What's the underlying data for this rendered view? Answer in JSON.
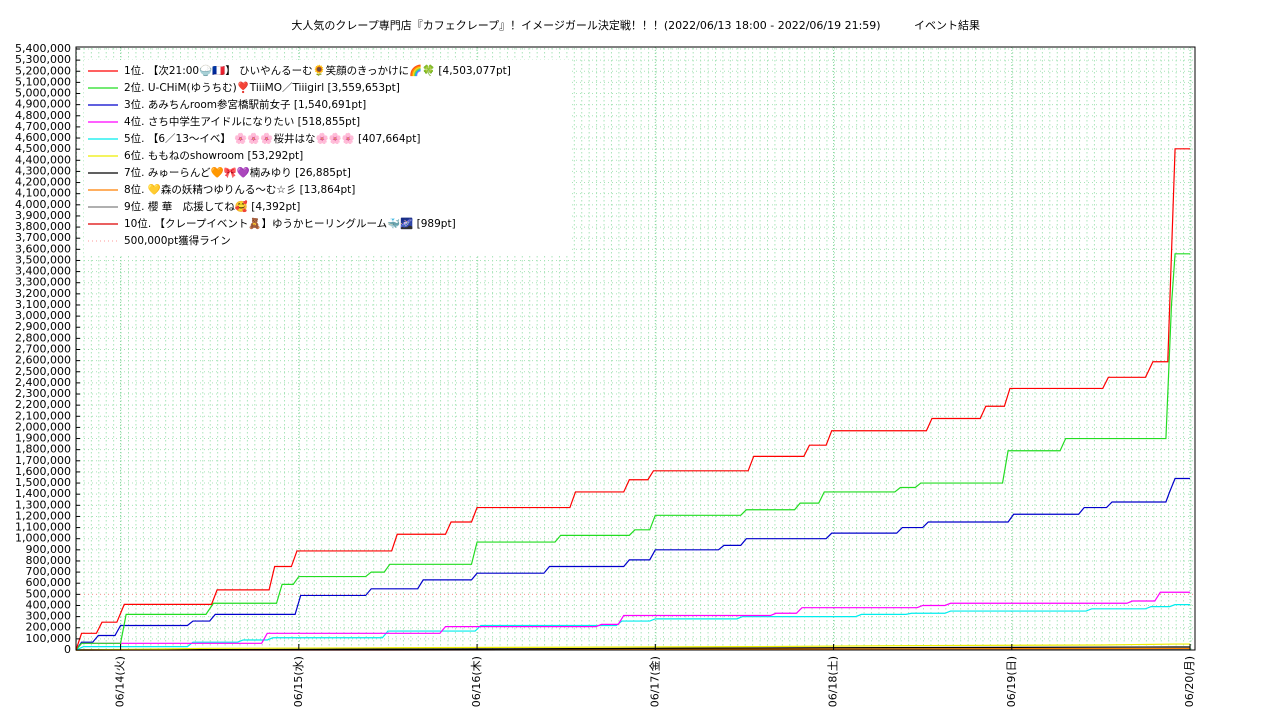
{
  "chart_data": {
    "type": "line",
    "title": "大人気のクレープ専門店『カフェクレープ』！イメージガール決定戦！！！(2022/06/13 18:00 - 2022/06/19 21:59)",
    "subtitle": "イベント結果",
    "xlim": [
      "2022-06-13 18:00",
      "2022-06-20 00:40"
    ],
    "xticks": [
      {
        "value": "2022-06-14 00:00",
        "label": "06/14(火)"
      },
      {
        "value": "2022-06-15 00:00",
        "label": "06/15(水)"
      },
      {
        "value": "2022-06-16 00:00",
        "label": "06/16(木)"
      },
      {
        "value": "2022-06-17 00:00",
        "label": "06/17(金)"
      },
      {
        "value": "2022-06-18 00:00",
        "label": "06/18(土)"
      },
      {
        "value": "2022-06-19 00:00",
        "label": "06/19(日)"
      },
      {
        "value": "2022-06-20 00:00",
        "label": "06/20(月)"
      }
    ],
    "ylim": [
      0,
      5400000
    ],
    "yticks": [
      0,
      {
        "value": 100000,
        "label": "100,000"
      },
      {
        "value": 200000,
        "label": "200,000"
      },
      {
        "value": 300000,
        "label": "300,000"
      },
      {
        "value": 400000,
        "label": "400,000"
      },
      {
        "value": 500000,
        "label": "500,000"
      },
      {
        "value": 600000,
        "label": "600,000"
      },
      {
        "value": 700000,
        "label": "700,000"
      },
      {
        "value": 800000,
        "label": "800,000"
      },
      {
        "value": 900000,
        "label": "900,000"
      },
      {
        "value": 1000000,
        "label": "1,000,000"
      },
      {
        "value": 1100000,
        "label": "1,100,000"
      },
      {
        "value": 1200000,
        "label": "1,200,000"
      },
      {
        "value": 1300000,
        "label": "1,300,000"
      },
      {
        "value": 1400000,
        "label": "1,400,000"
      },
      {
        "value": 1500000,
        "label": "1,500,000"
      },
      {
        "value": 1600000,
        "label": "1,600,000"
      },
      {
        "value": 1700000,
        "label": "1,700,000"
      },
      {
        "value": 1800000,
        "label": "1,800,000"
      },
      {
        "value": 1900000,
        "label": "1,900,000"
      },
      {
        "value": 2000000,
        "label": "2,000,000"
      },
      {
        "value": 2100000,
        "label": "2,100,000"
      },
      {
        "value": 2200000,
        "label": "2,200,000"
      },
      {
        "value": 2300000,
        "label": "2,300,000"
      },
      {
        "value": 2400000,
        "label": "2,400,000"
      },
      {
        "value": 2500000,
        "label": "2,500,000"
      },
      {
        "value": 2600000,
        "label": "2,600,000"
      },
      {
        "value": 2700000,
        "label": "2,700,000"
      },
      {
        "value": 2800000,
        "label": "2,800,000"
      },
      {
        "value": 2900000,
        "label": "2,900,000"
      },
      {
        "value": 3000000,
        "label": "3,000,000"
      },
      {
        "value": 3100000,
        "label": "3,100,000"
      },
      {
        "value": 3200000,
        "label": "3,200,000"
      },
      {
        "value": 3300000,
        "label": "3,300,000"
      },
      {
        "value": 3400000,
        "label": "3,400,000"
      },
      {
        "value": 3500000,
        "label": "3,500,000"
      },
      {
        "value": 3600000,
        "label": "3,600,000"
      },
      {
        "value": 3700000,
        "label": "3,700,000"
      },
      {
        "value": 3800000,
        "label": "3,800,000"
      },
      {
        "value": 3900000,
        "label": "3,900,000"
      },
      {
        "value": 4000000,
        "label": "4,000,000"
      },
      {
        "value": 4100000,
        "label": "4,100,000"
      },
      {
        "value": 4200000,
        "label": "4,200,000"
      },
      {
        "value": 4300000,
        "label": "4,300,000"
      },
      {
        "value": 4400000,
        "label": "4,400,000"
      },
      {
        "value": 4500000,
        "label": "4,500,000"
      },
      {
        "value": 4600000,
        "label": "4,600,000"
      },
      {
        "value": 4700000,
        "label": "4,700,000"
      },
      {
        "value": 4800000,
        "label": "4,800,000"
      },
      {
        "value": 4900000,
        "label": "4,900,000"
      },
      {
        "value": 5000000,
        "label": "5,000,000"
      },
      {
        "value": 5100000,
        "label": "5,100,000"
      },
      {
        "value": 5200000,
        "label": "5,200,000"
      },
      {
        "value": 5300000,
        "label": "5,300,000"
      },
      {
        "value": 5400000,
        "label": "5,400,000"
      }
    ],
    "grid": true,
    "legend": "upper left",
    "series": [
      {
        "name": "1位. 【次21:00🍚🇫🇷】 ひいやんるーむ🌻笑顔のきっかけに🌈🍀 [4,503,077pt]",
        "color": "#ff0000",
        "x": [
          "2022-06-13 18:00",
          "2022-06-13 18:45",
          "2022-06-13 20:45",
          "2022-06-13 21:30",
          "2022-06-13 23:30",
          "2022-06-14 00:30",
          "2022-06-14 12:15",
          "2022-06-14 13:00",
          "2022-06-14 20:00",
          "2022-06-14 20:45",
          "2022-06-14 23:00",
          "2022-06-14 23:45",
          "2022-06-15 12:30",
          "2022-06-15 13:15",
          "2022-06-15 19:45",
          "2022-06-15 20:30",
          "2022-06-15 23:15",
          "2022-06-16 00:00",
          "2022-06-16 12:30",
          "2022-06-16 13:15",
          "2022-06-16 19:45",
          "2022-06-16 20:30",
          "2022-06-16 23:00",
          "2022-06-16 23:45",
          "2022-06-17 12:30",
          "2022-06-17 13:15",
          "2022-06-17 20:00",
          "2022-06-17 20:45",
          "2022-06-17 23:00",
          "2022-06-17 23:45",
          "2022-06-18 12:30",
          "2022-06-18 13:15",
          "2022-06-18 19:45",
          "2022-06-18 20:30",
          "2022-06-18 23:00",
          "2022-06-18 23:45",
          "2022-06-19 12:15",
          "2022-06-19 13:00",
          "2022-06-19 18:00",
          "2022-06-19 19:00",
          "2022-06-19 21:00",
          "2022-06-19 21:59",
          "2022-06-20 00:00"
        ],
        "values": [
          0,
          150000,
          150000,
          250000,
          250000,
          410000,
          410000,
          540000,
          540000,
          750000,
          750000,
          890000,
          890000,
          1040000,
          1040000,
          1150000,
          1150000,
          1280000,
          1280000,
          1420000,
          1420000,
          1530000,
          1530000,
          1610000,
          1610000,
          1740000,
          1740000,
          1840000,
          1840000,
          1970000,
          1970000,
          2080000,
          2080000,
          2190000,
          2190000,
          2350000,
          2350000,
          2450000,
          2450000,
          2590000,
          2590000,
          4503077,
          4503077
        ]
      },
      {
        "name": "2位. U-CHiM(ゆうちむ)❣️TiiiMO／Tiiigirl [3,559,653pt]",
        "color": "#22dd22",
        "x": [
          "2022-06-13 18:00",
          "2022-06-13 18:45",
          "2022-06-14 00:00",
          "2022-06-14 00:45",
          "2022-06-14 11:30",
          "2022-06-14 12:30",
          "2022-06-14 21:00",
          "2022-06-14 21:45",
          "2022-06-14 23:15",
          "2022-06-15 00:00",
          "2022-06-15 09:00",
          "2022-06-15 09:45",
          "2022-06-15 11:30",
          "2022-06-15 12:15",
          "2022-06-15 23:15",
          "2022-06-16 00:00",
          "2022-06-16 10:30",
          "2022-06-16 11:15",
          "2022-06-16 20:30",
          "2022-06-16 21:15",
          "2022-06-16 23:15",
          "2022-06-17 00:00",
          "2022-06-17 11:30",
          "2022-06-17 12:15",
          "2022-06-17 18:45",
          "2022-06-17 19:30",
          "2022-06-17 22:00",
          "2022-06-17 22:45",
          "2022-06-18 08:15",
          "2022-06-18 09:00",
          "2022-06-18 11:00",
          "2022-06-18 11:45",
          "2022-06-18 22:45",
          "2022-06-18 23:30",
          "2022-06-19 06:30",
          "2022-06-19 07:15",
          "2022-06-19 20:45",
          "2022-06-19 21:30",
          "2022-06-19 21:59",
          "2022-06-20 00:00"
        ],
        "values": [
          0,
          60000,
          60000,
          320000,
          320000,
          420000,
          420000,
          590000,
          590000,
          660000,
          660000,
          700000,
          700000,
          770000,
          770000,
          970000,
          970000,
          1030000,
          1030000,
          1080000,
          1080000,
          1210000,
          1210000,
          1260000,
          1260000,
          1320000,
          1320000,
          1420000,
          1420000,
          1460000,
          1460000,
          1500000,
          1500000,
          1790000,
          1790000,
          1900000,
          1900000,
          3100000,
          3559653,
          3559653
        ]
      },
      {
        "name": "3位. あみちんroom参宮橋駅前女子 [1,540,691pt]",
        "color": "#0000cc",
        "x": [
          "2022-06-13 18:00",
          "2022-06-13 18:45",
          "2022-06-13 20:15",
          "2022-06-13 21:00",
          "2022-06-13 23:15",
          "2022-06-14 00:00",
          "2022-06-14 09:00",
          "2022-06-14 09:45",
          "2022-06-14 12:00",
          "2022-06-14 12:45",
          "2022-06-14 23:30",
          "2022-06-15 00:15",
          "2022-06-15 09:00",
          "2022-06-15 09:45",
          "2022-06-15 16:00",
          "2022-06-15 16:45",
          "2022-06-15 23:15",
          "2022-06-16 00:00",
          "2022-06-16 09:00",
          "2022-06-16 09:45",
          "2022-06-16 19:45",
          "2022-06-16 20:30",
          "2022-06-16 23:15",
          "2022-06-17 00:00",
          "2022-06-17 08:30",
          "2022-06-17 09:15",
          "2022-06-17 11:30",
          "2022-06-17 12:15",
          "2022-06-17 23:00",
          "2022-06-17 23:45",
          "2022-06-18 08:30",
          "2022-06-18 09:15",
          "2022-06-18 12:00",
          "2022-06-18 12:45",
          "2022-06-18 23:30",
          "2022-06-19 00:15",
          "2022-06-19 09:00",
          "2022-06-19 09:45",
          "2022-06-19 12:45",
          "2022-06-19 13:30",
          "2022-06-19 20:45",
          "2022-06-19 21:15",
          "2022-06-19 21:59",
          "2022-06-20 00:00"
        ],
        "values": [
          0,
          70000,
          70000,
          130000,
          130000,
          220000,
          220000,
          260000,
          260000,
          320000,
          320000,
          490000,
          490000,
          550000,
          550000,
          630000,
          630000,
          690000,
          690000,
          750000,
          750000,
          810000,
          810000,
          900000,
          900000,
          940000,
          940000,
          1000000,
          1000000,
          1050000,
          1050000,
          1100000,
          1100000,
          1150000,
          1150000,
          1220000,
          1220000,
          1280000,
          1280000,
          1330000,
          1330000,
          1420000,
          1540691,
          1540691
        ]
      },
      {
        "name": "4位. さち中学生アイドルになりたい [518,855pt]",
        "color": "#ff00ff",
        "x": [
          "2022-06-13 18:00",
          "2022-06-13 18:45",
          "2022-06-14 19:00",
          "2022-06-14 19:45",
          "2022-06-15 19:00",
          "2022-06-15 19:45",
          "2022-06-16 16:00",
          "2022-06-16 16:45",
          "2022-06-16 19:00",
          "2022-06-16 19:45",
          "2022-06-17 15:30",
          "2022-06-17 16:15",
          "2022-06-17 19:00",
          "2022-06-17 19:45",
          "2022-06-18 11:15",
          "2022-06-18 12:00",
          "2022-06-18 15:00",
          "2022-06-18 15:45",
          "2022-06-19 15:30",
          "2022-06-19 16:15",
          "2022-06-19 19:15",
          "2022-06-19 20:00",
          "2022-06-20 00:00"
        ],
        "values": [
          0,
          60000,
          60000,
          150000,
          150000,
          210000,
          210000,
          230000,
          230000,
          310000,
          310000,
          330000,
          330000,
          380000,
          380000,
          400000,
          400000,
          420000,
          420000,
          440000,
          440000,
          518855,
          518855
        ]
      },
      {
        "name": "5位. 【6／13〜イベ】 🌸🌸🌸桜井はな🌸🌸🌸 [407,664pt]",
        "color": "#00eeee",
        "x": [
          "2022-06-13 18:00",
          "2022-06-13 19:00",
          "2022-06-14 09:00",
          "2022-06-14 09:45",
          "2022-06-14 15:45",
          "2022-06-14 16:30",
          "2022-06-14 19:45",
          "2022-06-14 20:30",
          "2022-06-15 11:15",
          "2022-06-15 12:00",
          "2022-06-15 23:45",
          "2022-06-16 00:30",
          "2022-06-16 18:45",
          "2022-06-16 19:30",
          "2022-06-16 23:15",
          "2022-06-17 00:00",
          "2022-06-17 11:00",
          "2022-06-17 11:45",
          "2022-06-18 03:00",
          "2022-06-18 03:45",
          "2022-06-18 09:45",
          "2022-06-18 10:30",
          "2022-06-18 15:00",
          "2022-06-18 15:45",
          "2022-06-19 10:00",
          "2022-06-19 10:45",
          "2022-06-19 18:00",
          "2022-06-19 18:45",
          "2022-06-19 21:15",
          "2022-06-19 21:59",
          "2022-06-20 00:00"
        ],
        "values": [
          0,
          30000,
          30000,
          70000,
          70000,
          90000,
          90000,
          110000,
          110000,
          170000,
          170000,
          220000,
          220000,
          260000,
          260000,
          280000,
          280000,
          300000,
          300000,
          320000,
          320000,
          330000,
          330000,
          350000,
          350000,
          370000,
          370000,
          390000,
          390000,
          407664,
          407664
        ]
      },
      {
        "name": "6位. ももねのshowroom [53,292pt]",
        "color": "#eeee00",
        "x": [
          "2022-06-13 18:00",
          "2022-06-14 12:00",
          "2022-06-15 12:00",
          "2022-06-16 12:00",
          "2022-06-17 12:00",
          "2022-06-18 12:00",
          "2022-06-19 12:00",
          "2022-06-19 21:59",
          "2022-06-20 00:00"
        ],
        "values": [
          0,
          15000,
          20000,
          25000,
          30000,
          40000,
          45000,
          53292,
          53292
        ]
      },
      {
        "name": "7位. みゅーらんど🧡🎀💜楠みゆり [26,885pt]",
        "color": "#000000",
        "x": [
          "2022-06-13 18:00",
          "2022-06-16 00:00",
          "2022-06-18 00:00",
          "2022-06-19 21:59",
          "2022-06-20 00:00"
        ],
        "values": [
          0,
          10000,
          20000,
          26885,
          26885
        ]
      },
      {
        "name": "8位. 💛森の妖精つゆりんる〜む☆彡 [13,864pt]",
        "color": "#ff7f00",
        "x": [
          "2022-06-13 18:00",
          "2022-06-17 00:00",
          "2022-06-19 21:59",
          "2022-06-20 00:00"
        ],
        "values": [
          0,
          8000,
          13864,
          13864
        ]
      },
      {
        "name": "9位. 櫻 華　応援してね🥰 [4,392pt]",
        "color": "#808080",
        "x": [
          "2022-06-13 18:00",
          "2022-06-19 21:59",
          "2022-06-20 00:00"
        ],
        "values": [
          0,
          4392,
          4392
        ]
      },
      {
        "name": "10位. 【クレープイベント🧸】ゆうかヒーリングルーム🐳🌌 [989pt]",
        "color": "#dd0000",
        "x": [
          "2022-06-13 18:00",
          "2022-06-19 21:59",
          "2022-06-20 00:00"
        ],
        "values": [
          0,
          989,
          989
        ]
      }
    ],
    "reference_line": {
      "name": "500,000pt獲得ライン",
      "value": 500000,
      "color": "#ff9999"
    }
  }
}
